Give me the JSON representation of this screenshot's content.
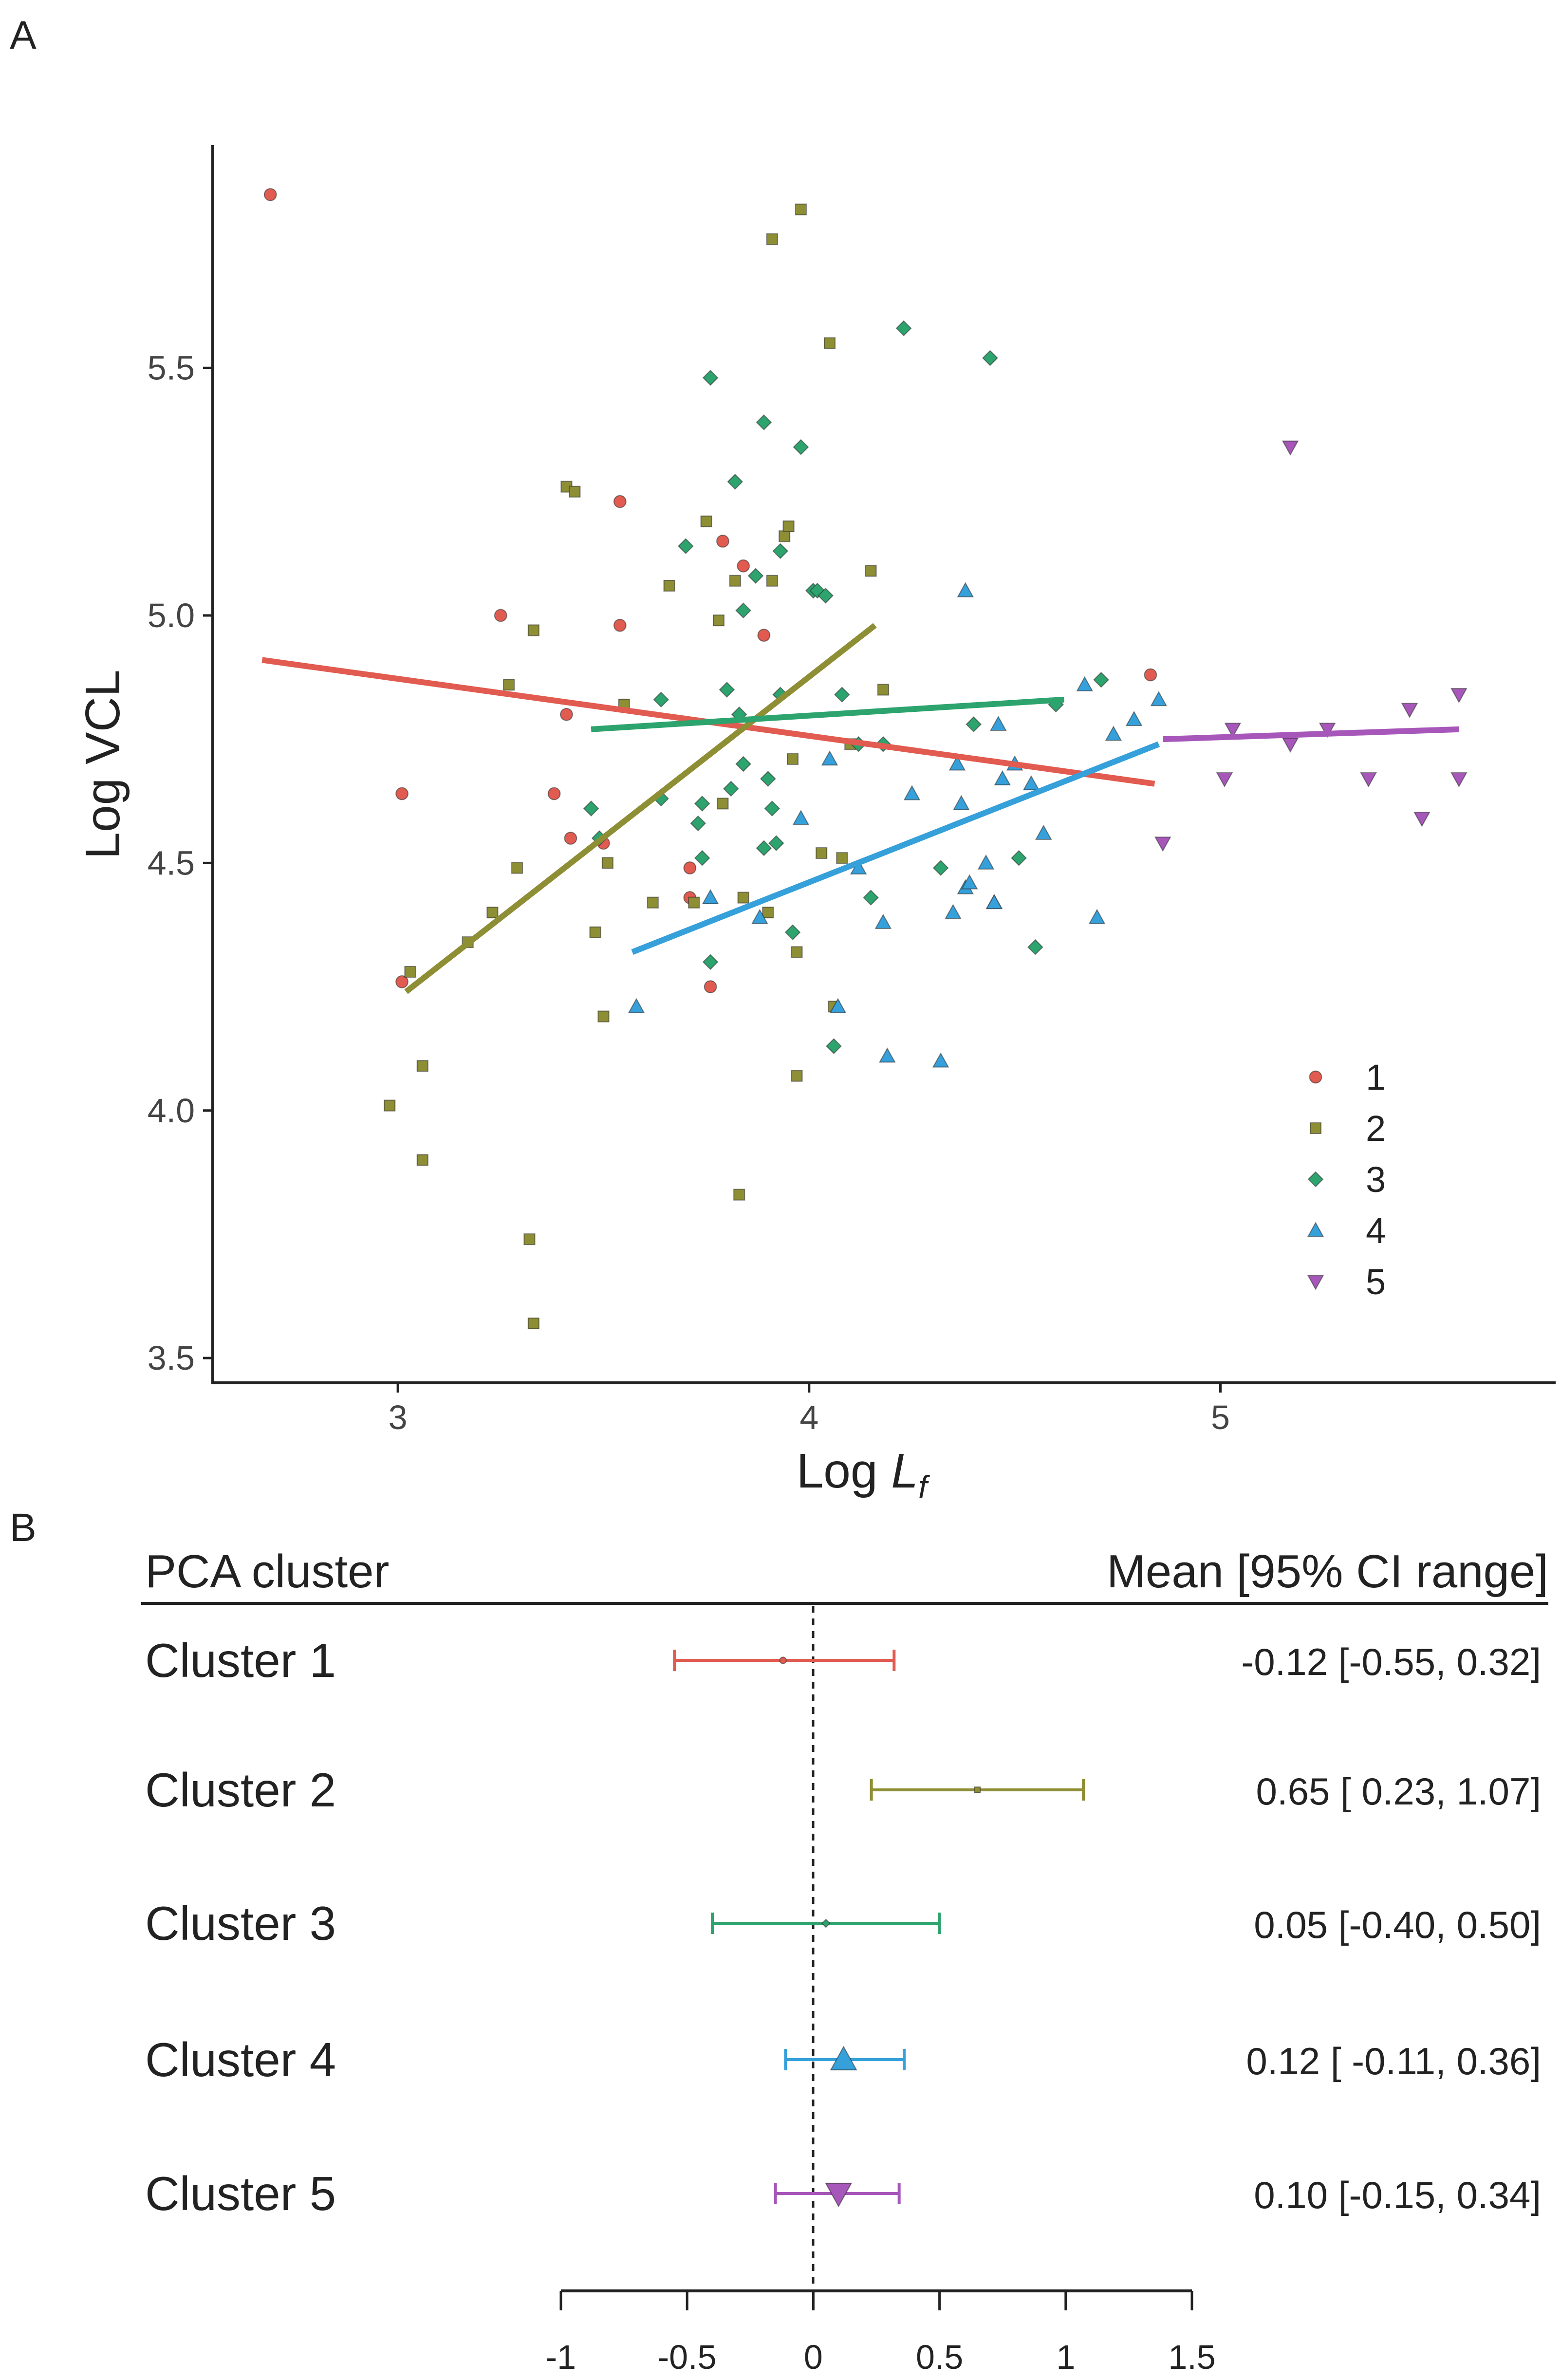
{
  "panel_a_label": "A",
  "panel_b_label": "B",
  "chart_data": [
    {
      "type": "scatter",
      "title": "",
      "xlabel": "Log ",
      "xlabel_sub": "L",
      "xlabel_subscript": "f",
      "ylabel": "Log VCL",
      "xlim": [
        2.55,
        5.75
      ],
      "ylim": [
        3.45,
        5.95
      ],
      "xticks": [
        3,
        4,
        5
      ],
      "xtick_labels": [
        "3",
        "4",
        "5"
      ],
      "yticks": [
        3.5,
        4.0,
        4.5,
        5.0,
        5.5
      ],
      "ytick_labels": [
        "3.5",
        "4.0",
        "4.5",
        "5.0",
        "5.5"
      ],
      "grid": false,
      "legend_position": "bottom-right",
      "series": [
        {
          "name": "1",
          "color": "#E15B50",
          "marker": "circle",
          "fit": [
            [
              2.67,
              4.91
            ],
            [
              4.84,
              4.66
            ]
          ],
          "points": [
            [
              2.69,
              5.85
            ],
            [
              3.01,
              4.64
            ],
            [
              3.01,
              4.26
            ],
            [
              3.25,
              5.0
            ],
            [
              3.38,
              4.64
            ],
            [
              3.41,
              4.8
            ],
            [
              3.42,
              4.55
            ],
            [
              3.54,
              5.23
            ],
            [
              3.54,
              4.98
            ],
            [
              3.5,
              4.54
            ],
            [
              3.71,
              4.43
            ],
            [
              3.71,
              4.49
            ],
            [
              3.76,
              4.25
            ],
            [
              3.79,
              5.15
            ],
            [
              3.84,
              5.1
            ],
            [
              3.89,
              4.96
            ],
            [
              4.83,
              4.88
            ]
          ]
        },
        {
          "name": "2",
          "color": "#8E8E35",
          "marker": "square",
          "fit": [
            [
              3.02,
              4.24
            ],
            [
              4.16,
              4.98
            ]
          ],
          "points": [
            [
              2.98,
              4.01
            ],
            [
              3.03,
              4.28
            ],
            [
              3.06,
              4.09
            ],
            [
              3.06,
              3.9
            ],
            [
              3.17,
              4.34
            ],
            [
              3.23,
              4.4
            ],
            [
              3.27,
              4.86
            ],
            [
              3.29,
              4.49
            ],
            [
              3.32,
              3.74
            ],
            [
              3.33,
              3.57
            ],
            [
              3.33,
              4.97
            ],
            [
              3.41,
              5.26
            ],
            [
              3.43,
              5.25
            ],
            [
              3.48,
              4.36
            ],
            [
              3.5,
              4.19
            ],
            [
              3.51,
              4.5
            ],
            [
              3.55,
              4.82
            ],
            [
              3.62,
              4.42
            ],
            [
              3.66,
              5.06
            ],
            [
              3.72,
              4.42
            ],
            [
              3.75,
              5.19
            ],
            [
              3.78,
              4.99
            ],
            [
              3.79,
              4.62
            ],
            [
              3.82,
              5.07
            ],
            [
              3.83,
              3.83
            ],
            [
              3.84,
              4.43
            ],
            [
              3.9,
              4.4
            ],
            [
              3.91,
              5.07
            ],
            [
              3.91,
              5.76
            ],
            [
              3.94,
              5.16
            ],
            [
              3.95,
              5.18
            ],
            [
              3.97,
              4.32
            ],
            [
              3.97,
              4.07
            ],
            [
              3.98,
              5.82
            ],
            [
              4.03,
              4.52
            ],
            [
              4.05,
              5.55
            ],
            [
              4.06,
              4.21
            ],
            [
              4.08,
              4.51
            ],
            [
              4.1,
              4.74
            ],
            [
              4.15,
              5.09
            ],
            [
              4.18,
              4.85
            ],
            [
              3.96,
              4.71
            ]
          ]
        },
        {
          "name": "3",
          "color": "#2DA36E",
          "marker": "diamond",
          "fit": [
            [
              3.47,
              4.77
            ],
            [
              4.62,
              4.83
            ]
          ],
          "points": [
            [
              3.47,
              4.61
            ],
            [
              3.49,
              4.55
            ],
            [
              3.64,
              4.83
            ],
            [
              3.64,
              4.63
            ],
            [
              3.7,
              5.14
            ],
            [
              3.73,
              4.58
            ],
            [
              3.74,
              4.62
            ],
            [
              3.74,
              4.51
            ],
            [
              3.76,
              5.48
            ],
            [
              3.76,
              4.3
            ],
            [
              3.8,
              4.85
            ],
            [
              3.81,
              4.65
            ],
            [
              3.82,
              5.27
            ],
            [
              3.83,
              4.8
            ],
            [
              3.84,
              4.7
            ],
            [
              3.84,
              5.01
            ],
            [
              3.87,
              5.08
            ],
            [
              3.89,
              5.39
            ],
            [
              3.89,
              4.53
            ],
            [
              3.9,
              4.67
            ],
            [
              3.91,
              4.61
            ],
            [
              3.92,
              4.54
            ],
            [
              3.93,
              4.84
            ],
            [
              3.93,
              5.13
            ],
            [
              3.96,
              4.36
            ],
            [
              3.98,
              5.34
            ],
            [
              4.01,
              5.05
            ],
            [
              4.02,
              5.05
            ],
            [
              4.04,
              5.04
            ],
            [
              4.06,
              4.13
            ],
            [
              4.08,
              4.84
            ],
            [
              4.12,
              4.74
            ],
            [
              4.15,
              4.43
            ],
            [
              4.18,
              4.74
            ],
            [
              4.23,
              5.58
            ],
            [
              4.32,
              4.49
            ],
            [
              4.4,
              4.78
            ],
            [
              4.44,
              5.52
            ],
            [
              4.51,
              4.51
            ],
            [
              4.55,
              4.33
            ],
            [
              4.6,
              4.82
            ],
            [
              4.71,
              4.87
            ]
          ]
        },
        {
          "name": "4",
          "color": "#35A0DA",
          "marker": "triangle-up",
          "fit": [
            [
              3.57,
              4.32
            ],
            [
              4.85,
              4.74
            ]
          ],
          "points": [
            [
              3.58,
              4.21
            ],
            [
              3.76,
              4.43
            ],
            [
              3.98,
              4.59
            ],
            [
              4.05,
              4.71
            ],
            [
              4.07,
              4.21
            ],
            [
              4.12,
              4.49
            ],
            [
              4.18,
              4.38
            ],
            [
              4.19,
              4.11
            ],
            [
              4.25,
              4.64
            ],
            [
              4.32,
              4.1
            ],
            [
              4.35,
              4.4
            ],
            [
              4.36,
              4.7
            ],
            [
              4.37,
              4.62
            ],
            [
              4.38,
              4.45
            ],
            [
              4.39,
              4.46
            ],
            [
              4.38,
              5.05
            ],
            [
              4.43,
              4.5
            ],
            [
              4.45,
              4.42
            ],
            [
              4.46,
              4.78
            ],
            [
              4.47,
              4.67
            ],
            [
              4.5,
              4.7
            ],
            [
              4.54,
              4.66
            ],
            [
              4.57,
              4.56
            ],
            [
              4.67,
              4.86
            ],
            [
              4.7,
              4.39
            ],
            [
              4.74,
              4.76
            ],
            [
              4.79,
              4.79
            ],
            [
              4.85,
              4.83
            ],
            [
              4.45,
              4.42
            ],
            [
              3.88,
              4.39
            ]
          ]
        },
        {
          "name": "5",
          "color": "#A657B9",
          "marker": "triangle-down",
          "fit": [
            [
              4.86,
              4.75
            ],
            [
              5.58,
              4.77
            ]
          ],
          "points": [
            [
              4.86,
              4.54
            ],
            [
              5.01,
              4.67
            ],
            [
              5.03,
              4.77
            ],
            [
              5.17,
              5.34
            ],
            [
              5.17,
              4.74
            ],
            [
              5.26,
              4.77
            ],
            [
              5.36,
              4.67
            ],
            [
              5.46,
              4.81
            ],
            [
              5.49,
              4.59
            ],
            [
              5.58,
              4.84
            ],
            [
              5.58,
              4.67
            ]
          ]
        }
      ]
    },
    {
      "type": "forest",
      "header_left": "PCA cluster",
      "header_right": "Mean [95% CI range]",
      "xlim": [
        -1,
        1.5
      ],
      "xticks": [
        -1,
        -0.5,
        0,
        0.5,
        1,
        1.5
      ],
      "xtick_labels": [
        "-1",
        "-0.5",
        "0",
        "0.5",
        "1",
        "1.5"
      ],
      "reference_line": 0,
      "rows": [
        {
          "label": "Cluster 1",
          "mean": -0.12,
          "lower": -0.55,
          "upper": 0.32,
          "text": "-0.12 [-0.55, 0.32]",
          "color": "#E15B50",
          "marker": "circle"
        },
        {
          "label": "Cluster 2",
          "mean": 0.65,
          "lower": 0.23,
          "upper": 1.07,
          "text": "0.65 [ 0.23, 1.07]",
          "color": "#8E8E35",
          "marker": "square"
        },
        {
          "label": "Cluster 3",
          "mean": 0.05,
          "lower": -0.4,
          "upper": 0.5,
          "text": "0.05 [-0.40, 0.50]",
          "color": "#2DA36E",
          "marker": "diamond"
        },
        {
          "label": "Cluster 4",
          "mean": 0.12,
          "lower": -0.11,
          "upper": 0.36,
          "text": "0.12 [ -0.11, 0.36]",
          "color": "#35A0DA",
          "marker": "triangle-up"
        },
        {
          "label": "Cluster 5",
          "mean": 0.1,
          "lower": -0.15,
          "upper": 0.34,
          "text": "0.10 [-0.15, 0.34]",
          "color": "#A657B9",
          "marker": "triangle-down"
        }
      ]
    }
  ]
}
